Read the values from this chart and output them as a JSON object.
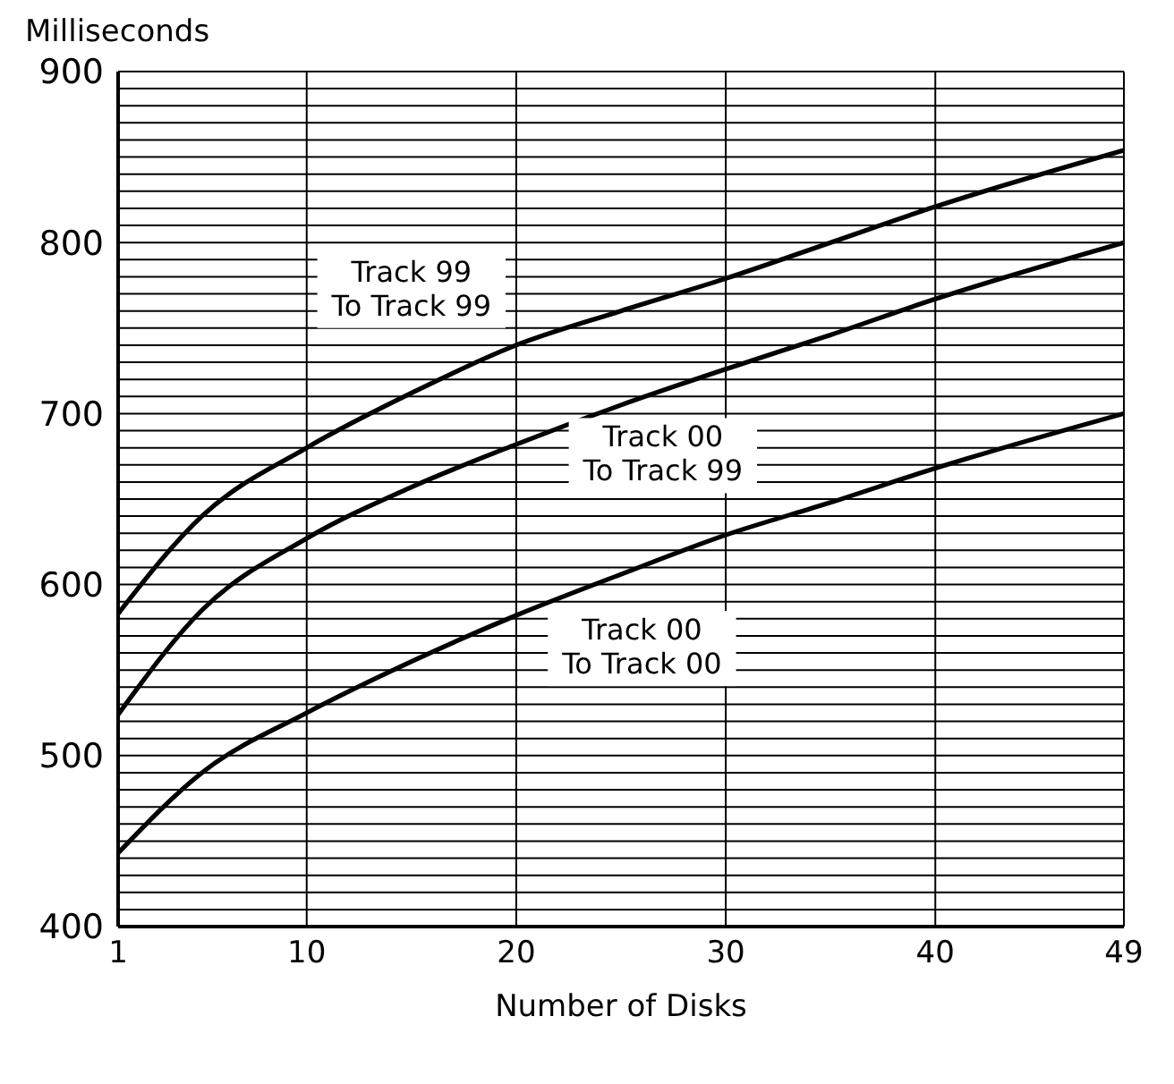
{
  "chart_data": {
    "type": "line",
    "xlabel": "Number of Disks",
    "ylabel": "Milliseconds",
    "x": [
      1,
      5,
      10,
      15,
      20,
      25,
      30,
      35,
      40,
      49
    ],
    "series": [
      {
        "name": "Track 99\nTo Track 99",
        "color": "#000000",
        "values": [
          583,
          640,
          680,
          712,
          740,
          760,
          779,
          800,
          821,
          854
        ]
      },
      {
        "name": "Track 00\nTo Track 99",
        "color": "#000000",
        "values": [
          524,
          585,
          627,
          657,
          682,
          705,
          726,
          746,
          767,
          800
        ]
      },
      {
        "name": "Track 00\nTo Track 00",
        "color": "#000000",
        "values": [
          443,
          490,
          525,
          555,
          582,
          606,
          629,
          648,
          668,
          700
        ]
      }
    ],
    "xlim": [
      1,
      49
    ],
    "xticks": [
      1,
      10,
      20,
      30,
      40,
      49
    ],
    "ylim": [
      400,
      900
    ],
    "yticks": [
      400,
      {
        "value": 410,
        "label": null
      },
      {
        "value": 420,
        "label": null
      },
      {
        "value": 430,
        "label": null
      },
      {
        "value": 440,
        "label": null
      },
      {
        "value": 450,
        "label": null
      },
      {
        "value": 460,
        "label": null
      },
      {
        "value": 470,
        "label": null
      },
      {
        "value": 480,
        "label": null
      },
      {
        "value": 490,
        "label": null
      },
      500,
      {
        "value": 510,
        "label": null
      },
      {
        "value": 520,
        "label": null
      },
      {
        "value": 530,
        "label": null
      },
      {
        "value": 540,
        "label": null
      },
      {
        "value": 550,
        "label": null
      },
      {
        "value": 560,
        "label": null
      },
      {
        "value": 570,
        "label": null
      },
      {
        "value": 580,
        "label": null
      },
      {
        "value": 590,
        "label": null
      },
      600,
      {
        "value": 610,
        "label": null
      },
      {
        "value": 620,
        "label": null
      },
      {
        "value": 630,
        "label": null
      },
      {
        "value": 640,
        "label": null
      },
      {
        "value": 650,
        "label": null
      },
      {
        "value": 660,
        "label": null
      },
      {
        "value": 670,
        "label": null
      },
      {
        "value": 680,
        "label": null
      },
      {
        "value": 690,
        "label": null
      },
      700,
      {
        "value": 710,
        "label": null
      },
      {
        "value": 720,
        "label": null
      },
      {
        "value": 730,
        "label": null
      },
      {
        "value": 740,
        "label": null
      },
      {
        "value": 750,
        "label": null
      },
      {
        "value": 760,
        "label": null
      },
      {
        "value": 770,
        "label": null
      },
      {
        "value": 780,
        "label": null
      },
      {
        "value": 790,
        "label": null
      },
      800,
      {
        "value": 810,
        "label": null
      },
      {
        "value": 820,
        "label": null
      },
      {
        "value": 830,
        "label": null
      },
      {
        "value": 840,
        "label": null
      },
      {
        "value": 850,
        "label": null
      },
      {
        "value": 860,
        "label": null
      },
      {
        "value": 870,
        "label": null
      },
      {
        "value": 880,
        "label": null
      },
      {
        "value": 890,
        "label": null
      },
      900
    ],
    "grid": true,
    "legend": false,
    "marker": "none",
    "line_style": "solid"
  }
}
